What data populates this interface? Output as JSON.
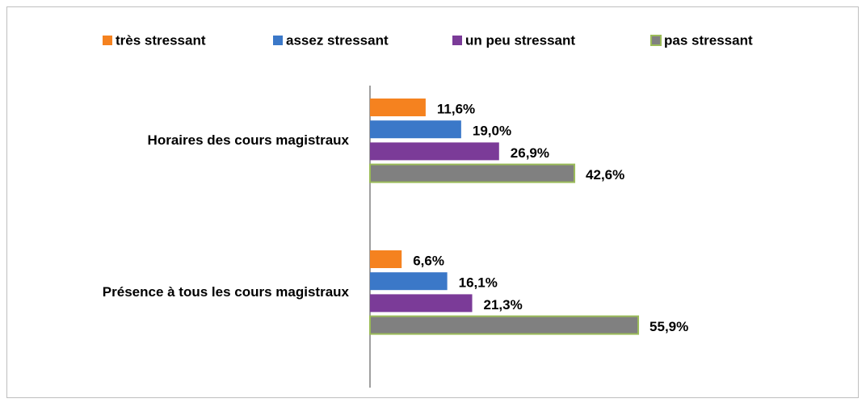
{
  "chart_data": {
    "type": "bar",
    "orientation": "horizontal",
    "categories": [
      "Horaires des cours magistraux",
      "Présence à tous les cours magistraux"
    ],
    "series": [
      {
        "name": "très stressant",
        "color": "#f5821f",
        "values": [
          11.6,
          6.6
        ],
        "value_labels": [
          "11,6%",
          "6,6%"
        ]
      },
      {
        "name": "assez stressant",
        "color": "#3b78c8",
        "values": [
          19.0,
          16.1
        ],
        "value_labels": [
          "19,0%",
          "16,1%"
        ]
      },
      {
        "name": "un peu stressant",
        "color": "#7b3b98",
        "values": [
          26.9,
          21.3
        ],
        "value_labels": [
          "26,9%",
          "21,3%"
        ]
      },
      {
        "name": "pas stressant",
        "color": "#808080",
        "edgecolor": "#9bbb59",
        "values": [
          42.6,
          55.9
        ],
        "value_labels": [
          "42,6%",
          "55,9%"
        ]
      }
    ],
    "legend": "top"
  }
}
